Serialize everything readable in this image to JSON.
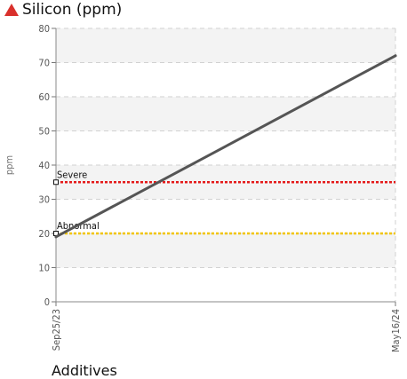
{
  "chart_data": {
    "type": "line",
    "title": "Silicon (ppm)",
    "ylabel": "ppm",
    "xlabel": "",
    "ylim": [
      0,
      80
    ],
    "yticks": [
      0,
      10,
      20,
      30,
      40,
      50,
      60,
      70,
      80
    ],
    "x": [
      "Sep25/23",
      "May16/24"
    ],
    "series": [
      {
        "values": [
          19,
          72
        ],
        "color": "#555555"
      }
    ],
    "thresholds": [
      {
        "name": "Severe",
        "value": 35,
        "color": "#e41b1b"
      },
      {
        "name": "Abnormal",
        "value": 20,
        "color": "#f2c500"
      }
    ],
    "grid": true,
    "legend": "none"
  },
  "header": {
    "icon": "warning-triangle-icon",
    "icon_color": "#d9302c"
  },
  "next_section": {
    "title": "Additives"
  }
}
